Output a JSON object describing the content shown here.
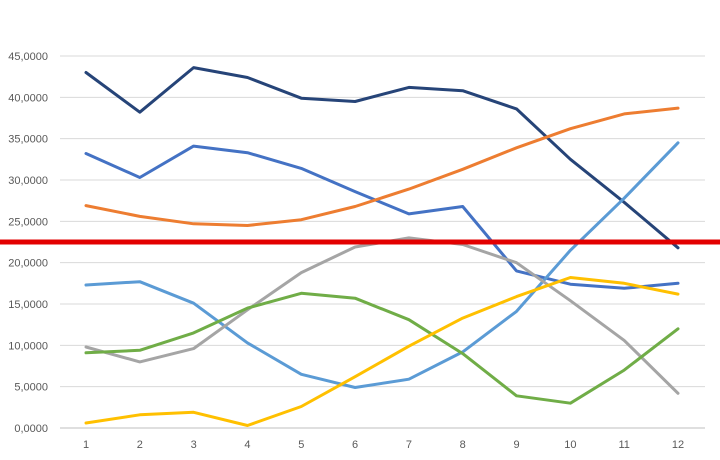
{
  "chart_data": {
    "type": "line",
    "x": [
      1,
      2,
      3,
      4,
      5,
      6,
      7,
      8,
      9,
      10,
      11,
      12
    ],
    "ylim": [
      0,
      45
    ],
    "yticks": [
      {
        "value": 0,
        "label": "0,0000"
      },
      {
        "value": 5,
        "label": "5,0000"
      },
      {
        "value": 10,
        "label": "10,0000"
      },
      {
        "value": 15,
        "label": "15,0000"
      },
      {
        "value": 20,
        "label": "20,0000"
      },
      {
        "value": 25,
        "label": "25,0000"
      },
      {
        "value": 30,
        "label": "30,0000"
      },
      {
        "value": 35,
        "label": "35,0000"
      },
      {
        "value": 40,
        "label": "40,0000"
      },
      {
        "value": 45,
        "label": "45,0000"
      }
    ],
    "grid": true,
    "series": [
      {
        "color": "#264478",
        "values": [
          43.0,
          38.2,
          43.6,
          42.4,
          39.9,
          39.5,
          41.2,
          40.8,
          38.6,
          32.5,
          27.3,
          21.8
        ]
      },
      {
        "color": "#4472c4",
        "values": [
          33.2,
          30.3,
          34.1,
          33.3,
          31.4,
          28.6,
          25.9,
          26.8,
          19.0,
          17.4,
          16.9,
          17.5
        ]
      },
      {
        "color": "#ed7d31",
        "values": [
          26.9,
          25.6,
          24.7,
          24.5,
          25.2,
          26.8,
          28.9,
          31.3,
          33.9,
          36.2,
          38.0,
          38.7
        ]
      },
      {
        "color": "#5b9bd5",
        "values": [
          17.3,
          17.7,
          15.1,
          10.3,
          6.5,
          4.9,
          5.9,
          9.2,
          14.1,
          21.5,
          27.8,
          34.5
        ]
      },
      {
        "color": "#a5a5a5",
        "values": [
          9.8,
          8.0,
          9.6,
          14.3,
          18.8,
          21.9,
          23.0,
          22.2,
          20.0,
          15.4,
          10.6,
          4.2
        ]
      },
      {
        "color": "#70ad47",
        "values": [
          9.1,
          9.4,
          11.5,
          14.5,
          16.3,
          15.7,
          13.1,
          9.0,
          3.9,
          3.0,
          7.0,
          12.0
        ]
      },
      {
        "color": "#ffc000",
        "values": [
          0.6,
          1.6,
          1.9,
          0.3,
          2.6,
          6.2,
          9.9,
          13.3,
          15.9,
          18.2,
          17.5,
          16.2
        ]
      }
    ],
    "reference_line": {
      "value": 22.5,
      "color": "#e30000"
    }
  }
}
